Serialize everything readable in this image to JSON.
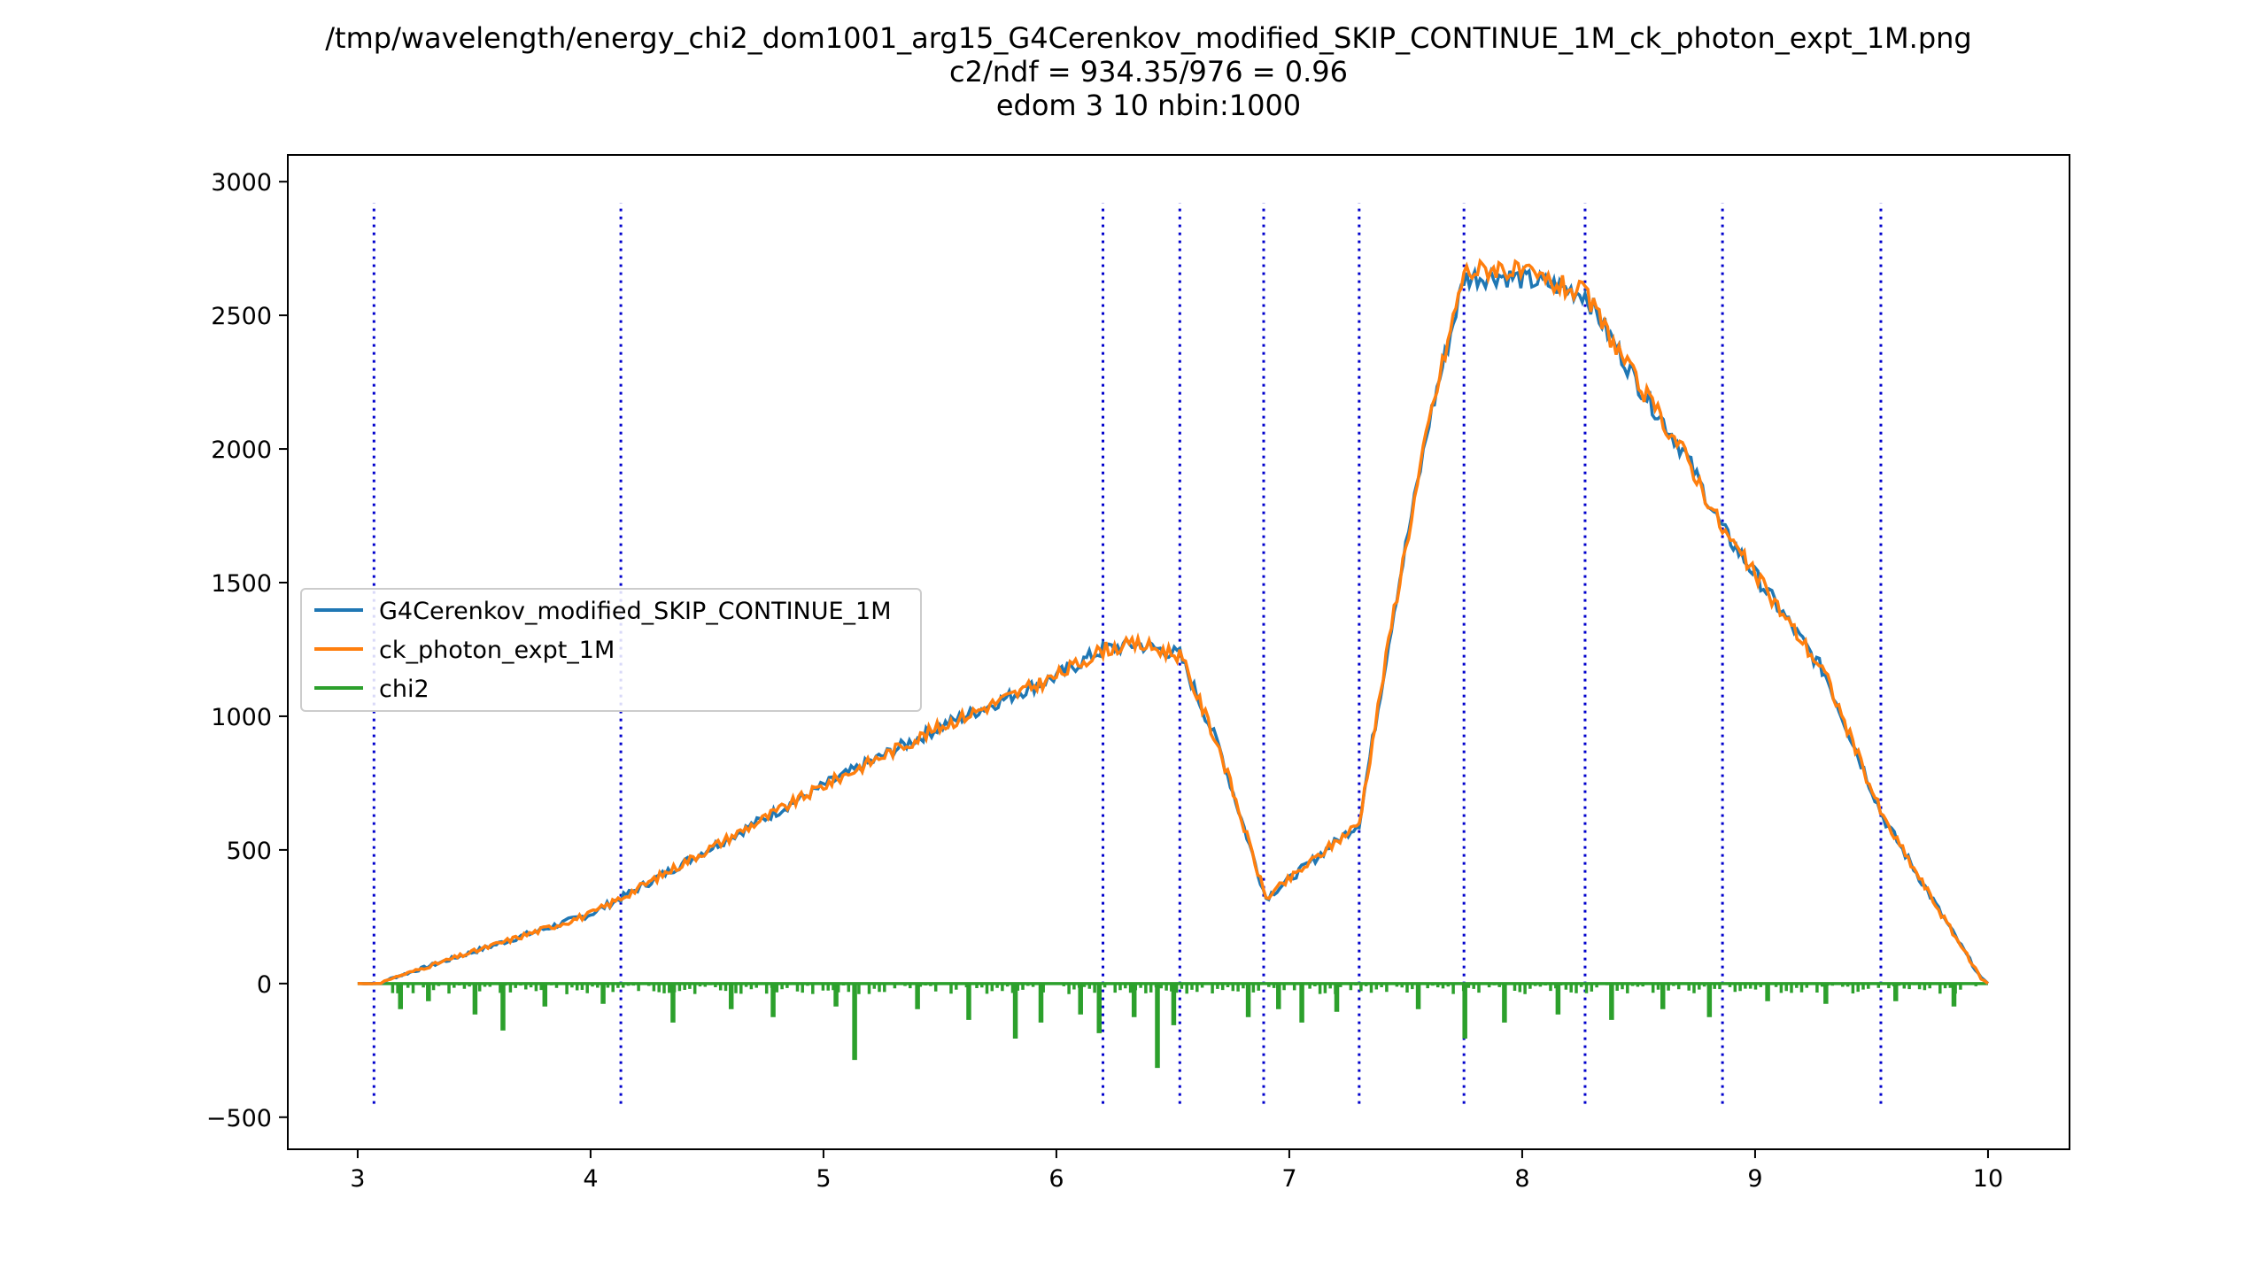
{
  "chart_data": {
    "type": "line",
    "title_lines": [
      "/tmp/wavelength/energy_chi2_dom1001_arg15_G4Cerenkov_modified_SKIP_CONTINUE_1M_ck_photon_expt_1M.png",
      "c2/ndf = 934.35/976 = 0.96",
      "edom 3 10 nbin:1000"
    ],
    "xlim": [
      2.7,
      10.35
    ],
    "ylim": [
      -620,
      3100
    ],
    "x_ticks": [
      3,
      4,
      5,
      6,
      7,
      8,
      9,
      10
    ],
    "y_ticks": [
      -500,
      0,
      500,
      1000,
      1500,
      2000,
      2500,
      3000
    ],
    "grid": false,
    "legend_position": "center-left",
    "series": [
      {
        "name": "G4Cerenkov_modified_SKIP_CONTINUE_1M",
        "color": "#1f77b4",
        "x": [
          3.0,
          3.1,
          3.13,
          3.5,
          4.0,
          4.13,
          4.5,
          5.0,
          5.5,
          6.0,
          6.2,
          6.35,
          6.53,
          6.7,
          6.9,
          7.1,
          7.3,
          7.45,
          7.6,
          7.75,
          7.9,
          8.1,
          8.27,
          8.5,
          8.7,
          8.86,
          9.0,
          9.3,
          9.55,
          9.8,
          9.97,
          10.0
        ],
        "y": [
          0,
          0,
          15,
          120,
          260,
          320,
          500,
          740,
          960,
          1150,
          1250,
          1270,
          1230,
          880,
          320,
          460,
          600,
          1400,
          2100,
          2640,
          2650,
          2620,
          2580,
          2240,
          1980,
          1700,
          1530,
          1160,
          620,
          260,
          20,
          0
        ]
      },
      {
        "name": "ck_photon_expt_1M",
        "color": "#ff7f0e",
        "x": [
          3.0,
          3.1,
          3.13,
          3.5,
          4.0,
          4.13,
          4.5,
          5.0,
          5.5,
          6.0,
          6.2,
          6.35,
          6.53,
          6.7,
          6.9,
          7.1,
          7.3,
          7.45,
          7.6,
          7.75,
          7.9,
          8.1,
          8.27,
          8.5,
          8.7,
          8.86,
          9.0,
          9.3,
          9.55,
          9.8,
          9.97,
          10.0
        ],
        "y": [
          0,
          0,
          15,
          120,
          260,
          320,
          500,
          740,
          960,
          1150,
          1250,
          1270,
          1230,
          880,
          320,
          460,
          600,
          1400,
          2100,
          2660,
          2680,
          2630,
          2580,
          2240,
          1980,
          1700,
          1530,
          1160,
          620,
          260,
          20,
          0
        ]
      },
      {
        "name": "chi2",
        "color": "#2ca02c",
        "x": [
          3.0,
          10.0
        ],
        "y": [
          0,
          0
        ]
      }
    ],
    "chi2_dips": [
      {
        "x": 3.18,
        "y": -90
      },
      {
        "x": 3.3,
        "y": -60
      },
      {
        "x": 3.5,
        "y": -110
      },
      {
        "x": 3.62,
        "y": -170
      },
      {
        "x": 3.8,
        "y": -80
      },
      {
        "x": 4.05,
        "y": -70
      },
      {
        "x": 4.35,
        "y": -140
      },
      {
        "x": 4.6,
        "y": -90
      },
      {
        "x": 4.78,
        "y": -120
      },
      {
        "x": 5.05,
        "y": -80
      },
      {
        "x": 5.13,
        "y": -280
      },
      {
        "x": 5.4,
        "y": -90
      },
      {
        "x": 5.62,
        "y": -130
      },
      {
        "x": 5.82,
        "y": -200
      },
      {
        "x": 5.93,
        "y": -140
      },
      {
        "x": 6.1,
        "y": -110
      },
      {
        "x": 6.18,
        "y": -180
      },
      {
        "x": 6.33,
        "y": -120
      },
      {
        "x": 6.43,
        "y": -310
      },
      {
        "x": 6.5,
        "y": -150
      },
      {
        "x": 6.82,
        "y": -120
      },
      {
        "x": 6.95,
        "y": -90
      },
      {
        "x": 7.05,
        "y": -140
      },
      {
        "x": 7.2,
        "y": -100
      },
      {
        "x": 7.55,
        "y": -90
      },
      {
        "x": 7.75,
        "y": -200
      },
      {
        "x": 7.92,
        "y": -140
      },
      {
        "x": 8.15,
        "y": -110
      },
      {
        "x": 8.38,
        "y": -130
      },
      {
        "x": 8.6,
        "y": -90
      },
      {
        "x": 8.8,
        "y": -120
      },
      {
        "x": 9.05,
        "y": -60
      },
      {
        "x": 9.3,
        "y": -70
      },
      {
        "x": 9.6,
        "y": -60
      },
      {
        "x": 9.85,
        "y": -80
      }
    ],
    "vertical_lines": {
      "color": "#0000cc",
      "x": [
        3.07,
        4.13,
        6.2,
        6.53,
        6.89,
        7.3,
        7.75,
        8.27,
        8.86,
        9.54
      ],
      "y_range": [
        -450,
        2920
      ]
    }
  }
}
